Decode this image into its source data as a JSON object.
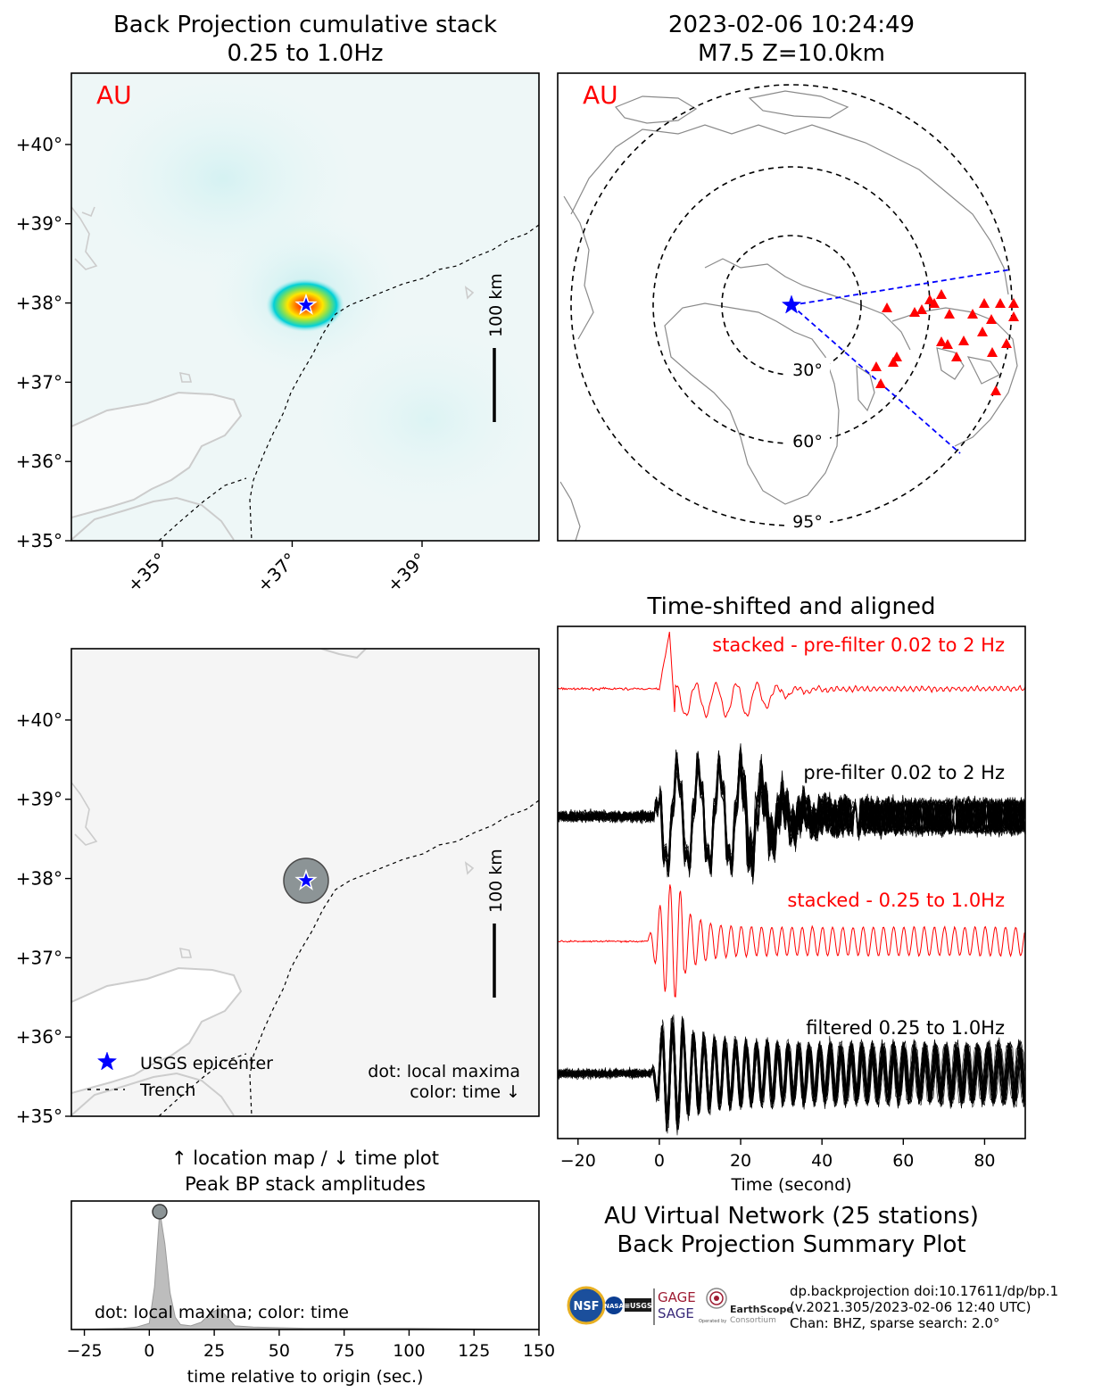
{
  "colors": {
    "stack_red": "#ff0000",
    "epicenter_blue": "#0000ff",
    "station_red": "#ff0000",
    "peak_fill": "#bdbdbd",
    "dot_grey": "#8c9496",
    "land": "#f5f5f5",
    "coast": "#cccccc"
  },
  "top_left": {
    "title_line1": "Back Projection cumulative stack",
    "title_line2": "0.25 to 1.0Hz",
    "network_label": "AU",
    "scale_label": "100 km"
  },
  "top_right": {
    "title_line1": "2023-02-06 10:24:49",
    "title_line2": "M7.5 Z=10.0km",
    "network_label": "AU",
    "ring_labels": [
      "30°",
      "60°",
      "95°"
    ]
  },
  "bottom_left": {
    "scale_label": "100 km",
    "legend_epicenter": "USGS epicenter",
    "legend_trench": "Trench",
    "note_line1": "dot: local maxima",
    "note_line2": "color: time ↓"
  },
  "amp_panel": {
    "title_line1": "↑ location map / ↓ time plot",
    "title_line2": "Peak BP stack amplitudes",
    "note": "dot: local maxima; color: time"
  },
  "traces_panel": {
    "title": "Time-shifted and aligned",
    "label_stack_prefilter": "stacked - pre-filter 0.02 to 2 Hz",
    "label_prefilter": "pre-filter 0.02 to 2 Hz",
    "label_stack_filtered": "stacked - 0.25 to 1.0Hz",
    "label_filtered": "filtered 0.25 to 1.0Hz"
  },
  "summary": {
    "line1": "AU Virtual Network (25 stations)",
    "line2": "Back Projection Summary Plot"
  },
  "footer": {
    "doi": "dp.backprojection doi:10.17611/dp/bp.1",
    "version": "(v.2021.305/2023-02-06 12:40 UTC)",
    "channel": "Chan: BHZ, sparse search: 2.0°"
  },
  "logos": {
    "nsf": "NSF",
    "nasa": "NASA",
    "usgs": "≡USGS",
    "gage": "GAGE",
    "sage": "SAGE",
    "operated": "Operated by",
    "earthscope": "EarthScope",
    "consortium": "Consortium"
  },
  "chart_data": [
    {
      "type": "heatmap",
      "panel": "back-projection-cumulative-stack",
      "title": "Back Projection cumulative stack",
      "subtitle": "0.25 to 1.0Hz",
      "xlabel": "",
      "ylabel": "",
      "lat_ticks": [
        "+35°",
        "+36°",
        "+37°",
        "+38°",
        "+39°",
        "+40°"
      ],
      "lon_ticks": [
        "+35°",
        "+37°",
        "+39°"
      ],
      "lat_values": [
        35,
        36,
        37,
        38,
        39,
        40
      ],
      "lon_values": [
        35,
        37,
        39
      ],
      "xlim": [
        33.6,
        40.8
      ],
      "ylim": [
        35,
        40.9
      ],
      "epicenter": {
        "lon": 37.02,
        "lat": 37.95
      },
      "peak": {
        "lon": 37.0,
        "lat": 37.98
      },
      "grid": false
    },
    {
      "type": "scatter",
      "panel": "station-map",
      "title": "2023-02-06 10:24:49",
      "subtitle": "M7.5 Z=10.0km",
      "ring_distances_deg": [
        30,
        60,
        95
      ],
      "stations": 25
    },
    {
      "type": "scatter",
      "panel": "peak-location-map",
      "lat_ticks": [
        "+35°",
        "+36°",
        "+37°",
        "+38°",
        "+39°",
        "+40°"
      ],
      "lat_values": [
        35,
        36,
        37,
        38,
        39,
        40
      ],
      "xlim": [
        33.6,
        40.8
      ],
      "ylim": [
        35,
        40.9
      ],
      "epicenter": {
        "lon": 37.02,
        "lat": 37.95
      },
      "local_maxima": [
        {
          "lon": 37.0,
          "lat": 37.95
        }
      ]
    },
    {
      "type": "area",
      "panel": "peak-bp-stack-amplitudes",
      "title": "Peak BP stack amplitudes",
      "xlabel": "time relative to origin (sec.)",
      "xlim": [
        -30,
        150
      ],
      "ylim": [
        0,
        1.05
      ],
      "xticks": [
        "−25",
        "0",
        "25",
        "50",
        "75",
        "100",
        "125",
        "150"
      ],
      "xtick_values": [
        -25,
        0,
        25,
        50,
        75,
        100,
        125,
        150
      ],
      "x": [
        -30,
        -10,
        -5,
        0,
        2,
        4,
        6,
        8,
        10,
        12,
        16,
        20,
        24,
        27,
        30,
        33,
        40,
        60,
        80,
        100,
        150
      ],
      "y": [
        0,
        0.01,
        0.02,
        0.05,
        0.35,
        0.97,
        0.7,
        0.3,
        0.1,
        0.04,
        0.03,
        0.06,
        0.14,
        0.17,
        0.1,
        0.03,
        0.02,
        0.01,
        0.01,
        0.01,
        0
      ],
      "local_maxima": [
        {
          "x": 4,
          "y": 0.97
        }
      ],
      "grid": false
    },
    {
      "type": "line",
      "panel": "time-shifted-and-aligned",
      "title": "Time-shifted and aligned",
      "xlabel": "Time (second)",
      "xlim": [
        -25,
        90
      ],
      "xticks": [
        "−20",
        "0",
        "20",
        "40",
        "60",
        "80"
      ],
      "xtick_values": [
        -20,
        0,
        20,
        40,
        60,
        80
      ],
      "series": [
        {
          "name": "stacked - pre-filter 0.02 to 2 Hz"
        },
        {
          "name": "pre-filter 0.02 to 2 Hz"
        },
        {
          "name": "stacked - 0.25 to 1.0Hz"
        },
        {
          "name": "filtered 0.25 to 1.0Hz"
        }
      ],
      "grid": false
    }
  ]
}
